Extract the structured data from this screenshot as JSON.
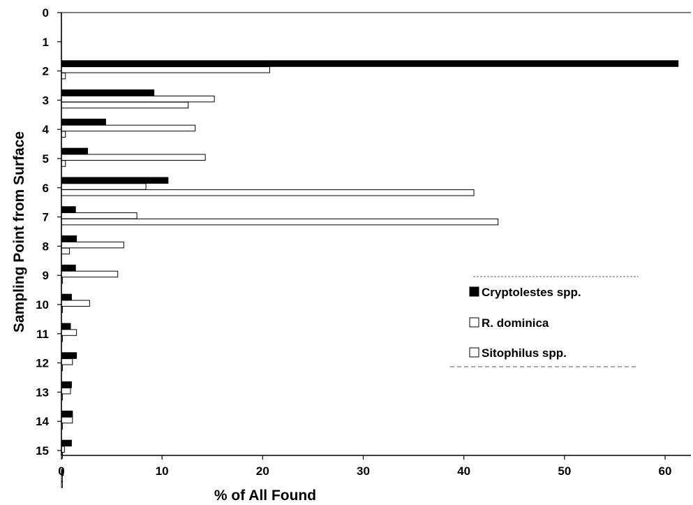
{
  "chart_data": {
    "type": "bar",
    "orientation": "horizontal",
    "title": "",
    "xlabel": "% of All Found",
    "ylabel": "Sampling Point from Surface",
    "xlim": [
      0,
      64
    ],
    "x_ticks": [
      "0",
      "10",
      "20",
      "30",
      "40",
      "50",
      "60"
    ],
    "x_tick_values": [
      0,
      10,
      20,
      30,
      40,
      50,
      60
    ],
    "categories": [
      "0",
      "1",
      "2",
      "3",
      "4",
      "5",
      "6",
      "7",
      "8",
      "9",
      "10",
      "11",
      "12",
      "13",
      "14",
      "15"
    ],
    "grid": false,
    "legend_position": "right",
    "series": [
      {
        "name": "Cryptolestes spp.",
        "fill": "#000000",
        "values": [
          null,
          61.3,
          9.2,
          4.4,
          2.6,
          10.6,
          1.4,
          1.5,
          1.4,
          1.0,
          0.9,
          1.5,
          1.0,
          1.1,
          1.0,
          0.2
        ]
      },
      {
        "name": "R. dominica",
        "fill": "#ffffff",
        "values": [
          null,
          20.7,
          15.2,
          13.3,
          14.3,
          8.4,
          7.5,
          6.2,
          5.6,
          2.8,
          1.5,
          1.1,
          0.9,
          1.1,
          0.3,
          0.1
        ]
      },
      {
        "name": "Sitophilus spp.",
        "fill": "#ffffff",
        "values": [
          null,
          0.4,
          12.6,
          0.4,
          0.4,
          41.0,
          43.4,
          0.8,
          0.1,
          0.1,
          0.1,
          0.1,
          0.1,
          0.1,
          0.1,
          0.1
        ]
      }
    ]
  }
}
